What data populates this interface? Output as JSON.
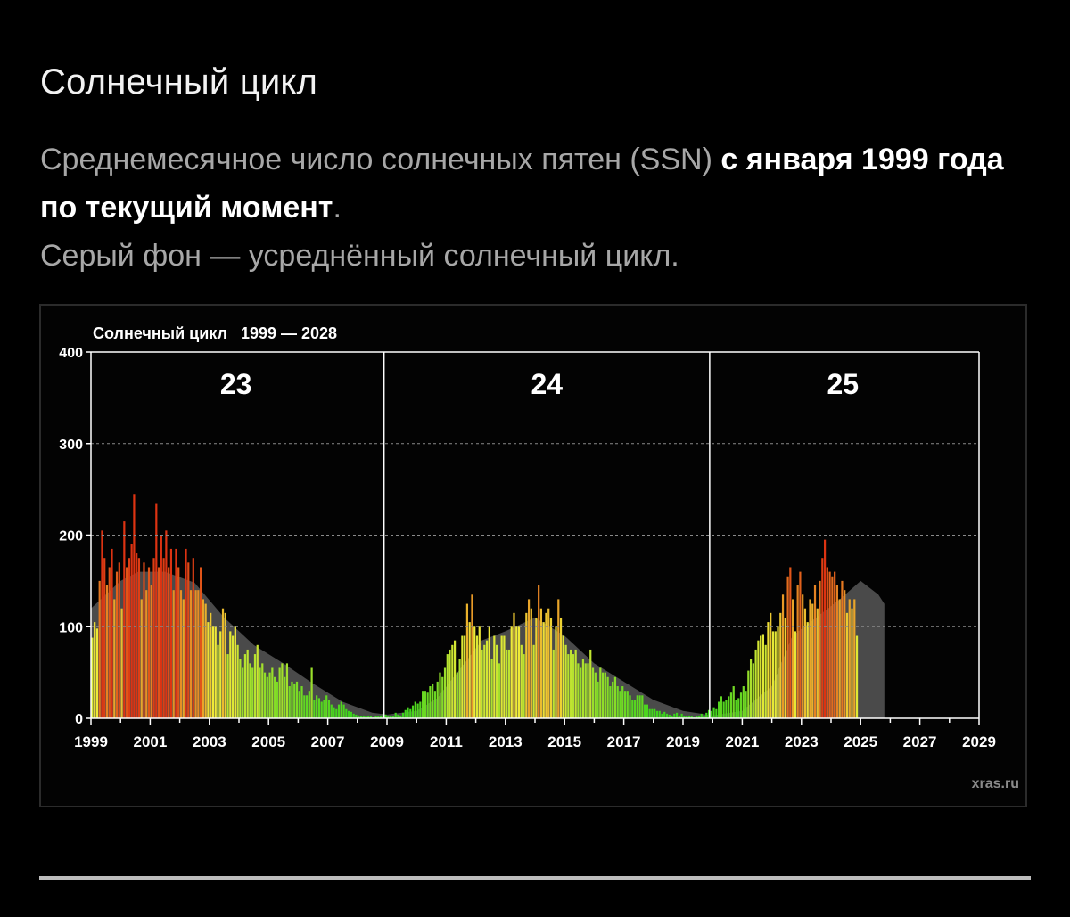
{
  "header": {
    "title": "Солнечный цикл",
    "desc_part1": "Среднемесячное число солнечных пятен (SSN) ",
    "desc_bold": "с января 1999 года по текущий момент",
    "desc_part2": ".",
    "desc_line2": "Серый фон — усреднённый солнечный цикл."
  },
  "chart_data": {
    "type": "bar",
    "title": "Солнечный цикл   1999 — 2028",
    "watermark": "xras.ru",
    "x_range": [
      1999,
      2029
    ],
    "ylim": [
      0,
      400
    ],
    "y_ticks": [
      0,
      100,
      200,
      300,
      400
    ],
    "x_ticks": [
      1999,
      2001,
      2003,
      2005,
      2007,
      2009,
      2011,
      2013,
      2015,
      2017,
      2019,
      2021,
      2023,
      2025,
      2027,
      2029
    ],
    "grid": true,
    "cycle_boundaries": [
      2008.9,
      2019.9
    ],
    "cycle_labels": [
      {
        "label": "23",
        "x": 2003.9
      },
      {
        "label": "24",
        "x": 2014.4
      },
      {
        "label": "25",
        "x": 2024.4
      }
    ],
    "colors": {
      "high": "#dd3312",
      "mid": "#f0ea38",
      "low": "#30d11a",
      "average": "#4a4a4a"
    },
    "series": [
      {
        "name": "SSN",
        "start": "1999-01",
        "values": [
          88,
          105,
          98,
          150,
          205,
          175,
          145,
          165,
          185,
          130,
          160,
          170,
          120,
          215,
          165,
          175,
          190,
          245,
          180,
          175,
          130,
          170,
          140,
          165,
          145,
          175,
          235,
          165,
          200,
          175,
          205,
          165,
          185,
          140,
          185,
          165,
          140,
          130,
          185,
          170,
          140,
          175,
          140,
          140,
          165,
          130,
          125,
          105,
          115,
          100,
          100,
          80,
          95,
          120,
          115,
          70,
          95,
          90,
          100,
          80,
          65,
          55,
          70,
          75,
          60,
          55,
          70,
          80,
          55,
          60,
          50,
          45,
          50,
          55,
          45,
          40,
          55,
          60,
          45,
          60,
          35,
          40,
          38,
          40,
          30,
          35,
          25,
          25,
          30,
          55,
          20,
          25,
          22,
          18,
          20,
          25,
          20,
          15,
          12,
          10,
          15,
          18,
          15,
          10,
          8,
          7,
          5,
          4,
          3,
          2,
          3,
          2,
          3,
          2,
          1,
          2,
          2,
          3,
          5,
          4,
          3,
          2,
          2,
          6,
          4,
          3,
          6,
          9,
          12,
          10,
          14,
          18,
          16,
          18,
          30,
          30,
          28,
          35,
          38,
          30,
          40,
          50,
          45,
          55,
          70,
          75,
          80,
          85,
          50,
          65,
          90,
          90,
          125,
          105,
          135,
          100,
          90,
          100,
          75,
          80,
          85,
          100,
          65,
          90,
          80,
          60,
          90,
          90,
          75,
          75,
          100,
          115,
          100,
          100,
          80,
          70,
          115,
          130,
          120,
          80,
          110,
          145,
          120,
          105,
          115,
          120,
          110,
          75,
          100,
          130,
          110,
          90,
          80,
          70,
          75,
          70,
          75,
          60,
          55,
          65,
          60,
          60,
          75,
          55,
          50,
          40,
          55,
          50,
          50,
          45,
          35,
          40,
          45,
          35,
          30,
          35,
          30,
          30,
          25,
          20,
          20,
          25,
          25,
          25,
          15,
          15,
          10,
          10,
          10,
          8,
          8,
          5,
          7,
          5,
          4,
          3,
          5,
          6,
          3,
          5,
          2,
          2,
          3,
          2,
          1,
          2,
          3,
          5,
          3,
          6,
          9,
          8,
          12,
          10,
          18,
          24,
          18,
          20,
          24,
          28,
          35,
          20,
          22,
          28,
          35,
          30,
          52,
          65,
          60,
          75,
          85,
          90,
          92,
          80,
          105,
          115,
          95,
          95,
          100,
          115,
          135,
          110,
          155,
          165,
          130,
          95,
          145,
          160,
          135,
          120,
          105,
          130,
          125,
          145,
          120,
          150,
          175,
          195,
          165,
          160,
          155,
          160,
          145,
          130,
          150,
          140,
          115,
          130,
          120,
          130,
          90
        ]
      },
      {
        "name": "average",
        "points": [
          [
            1999.0,
            120
          ],
          [
            2000.0,
            150
          ],
          [
            2000.6,
            160
          ],
          [
            2001.5,
            160
          ],
          [
            2002.5,
            148
          ],
          [
            2003.5,
            110
          ],
          [
            2004.5,
            80
          ],
          [
            2005.5,
            60
          ],
          [
            2006.5,
            38
          ],
          [
            2007.5,
            18
          ],
          [
            2008.5,
            6
          ],
          [
            2009.0,
            4
          ],
          [
            2010.0,
            8
          ],
          [
            2010.7,
            22
          ],
          [
            2011.5,
            55
          ],
          [
            2012.2,
            85
          ],
          [
            2013.0,
            95
          ],
          [
            2014.0,
            110
          ],
          [
            2015.0,
            90
          ],
          [
            2016.0,
            60
          ],
          [
            2017.0,
            40
          ],
          [
            2018.0,
            20
          ],
          [
            2019.0,
            8
          ],
          [
            2020.0,
            3
          ],
          [
            2021.0,
            8
          ],
          [
            2022.0,
            35
          ],
          [
            2022.7,
            90
          ],
          [
            2023.5,
            110
          ],
          [
            2024.3,
            130
          ],
          [
            2025.0,
            150
          ],
          [
            2025.6,
            135
          ],
          [
            2025.8,
            125
          ]
        ]
      }
    ]
  }
}
